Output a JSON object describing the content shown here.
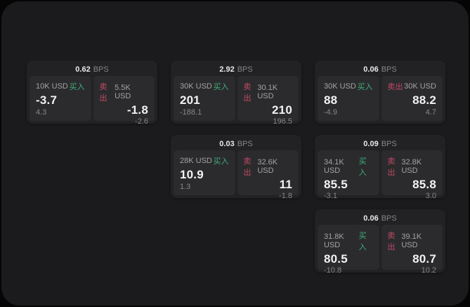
{
  "colors": {
    "buy_green": "#3fae79",
    "sell_red": "#c04a66",
    "panel_bg": "#1b1b1d",
    "card_bg": "#222224",
    "pane_bg": "#2b2b2d"
  },
  "labels": {
    "bps": "BPS",
    "buy": "买入",
    "sell": "卖出"
  },
  "cards": [
    {
      "bps": "0.62",
      "buy": {
        "size": "10K USD",
        "value": "-3.7",
        "sub": "4.3"
      },
      "sell": {
        "size": "5.5K USD",
        "value": "-1.8",
        "sub": "-2.6"
      }
    },
    {
      "bps": "2.92",
      "buy": {
        "size": "30K USD",
        "value": "201",
        "sub": "-188.1"
      },
      "sell": {
        "size": "30.1K USD",
        "value": "210",
        "sub": "196.5"
      }
    },
    {
      "bps": "0.06",
      "buy": {
        "size": "30K USD",
        "value": "88",
        "sub": "-4.9"
      },
      "sell": {
        "size": "30K USD",
        "value": "88.2",
        "sub": "4.7"
      }
    },
    {
      "bps": "0.03",
      "buy": {
        "size": "28K USD",
        "value": "10.9",
        "sub": "1.3"
      },
      "sell": {
        "size": "32.6K USD",
        "value": "11",
        "sub": "-1.8"
      }
    },
    {
      "bps": "0.09",
      "buy": {
        "size": "34.1K USD",
        "value": "85.5",
        "sub": "-3.1"
      },
      "sell": {
        "size": "32.8K USD",
        "value": "85.8",
        "sub": "3.0"
      }
    },
    {
      "bps": "0.06",
      "buy": {
        "size": "31.8K USD",
        "value": "80.5",
        "sub": "-10.8"
      },
      "sell": {
        "size": "39.1K USD",
        "value": "80.7",
        "sub": "10.2"
      }
    }
  ]
}
